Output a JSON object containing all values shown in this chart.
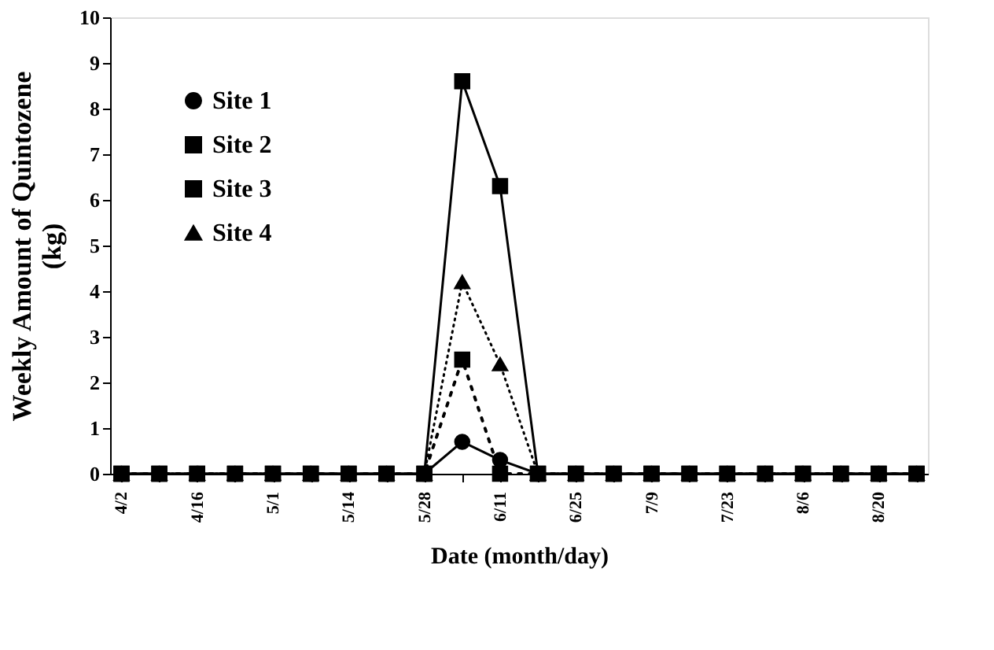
{
  "chart_data": {
    "type": "line",
    "xlabel": "Date (month/day)",
    "ylabel": "Weekly Amount of Quintozene (kg)",
    "categories": [
      "4/2",
      null,
      "4/16",
      null,
      "5/1",
      null,
      "5/14",
      null,
      "5/28",
      null,
      "6/11",
      null,
      "6/25",
      null,
      "7/9",
      null,
      "7/23",
      null,
      "8/6",
      null,
      "8/20",
      null
    ],
    "series": [
      {
        "name": "Site 1",
        "color": "#000000",
        "marker": "circle",
        "line_style": "solid",
        "values": [
          0,
          0,
          0,
          0,
          0,
          0,
          0,
          0,
          0,
          0.7,
          0.3,
          0,
          0,
          0,
          0,
          0,
          0,
          0,
          0,
          0,
          0,
          0
        ]
      },
      {
        "name": "Site 2",
        "color": "#000000",
        "marker": "square",
        "line_style": "solid",
        "values": [
          0,
          0,
          0,
          0,
          0,
          0,
          0,
          0,
          0,
          8.6,
          6.3,
          0,
          0,
          0,
          0,
          0,
          0,
          0,
          0,
          0,
          0,
          0
        ]
      },
      {
        "name": "Site 3",
        "color": "#000000",
        "marker": "square",
        "line_style": "dashed",
        "values": [
          0,
          0,
          0,
          0,
          0,
          0,
          0,
          0,
          0,
          2.5,
          0,
          0,
          0,
          0,
          0,
          0,
          0,
          0,
          0,
          0,
          0,
          0
        ]
      },
      {
        "name": "Site 4",
        "color": "#000000",
        "marker": "triangle",
        "line_style": "dotted",
        "values": [
          0,
          0,
          0,
          0,
          0,
          0,
          0,
          0,
          0,
          4.2,
          2.4,
          0,
          0,
          0,
          0,
          0,
          0,
          0,
          0,
          0,
          0,
          0
        ]
      }
    ],
    "ylim": [
      0,
      10
    ],
    "yticks": [
      0,
      1,
      2,
      3,
      4,
      5,
      6,
      7,
      8,
      9,
      10
    ],
    "grid": false,
    "legend": "top left"
  }
}
